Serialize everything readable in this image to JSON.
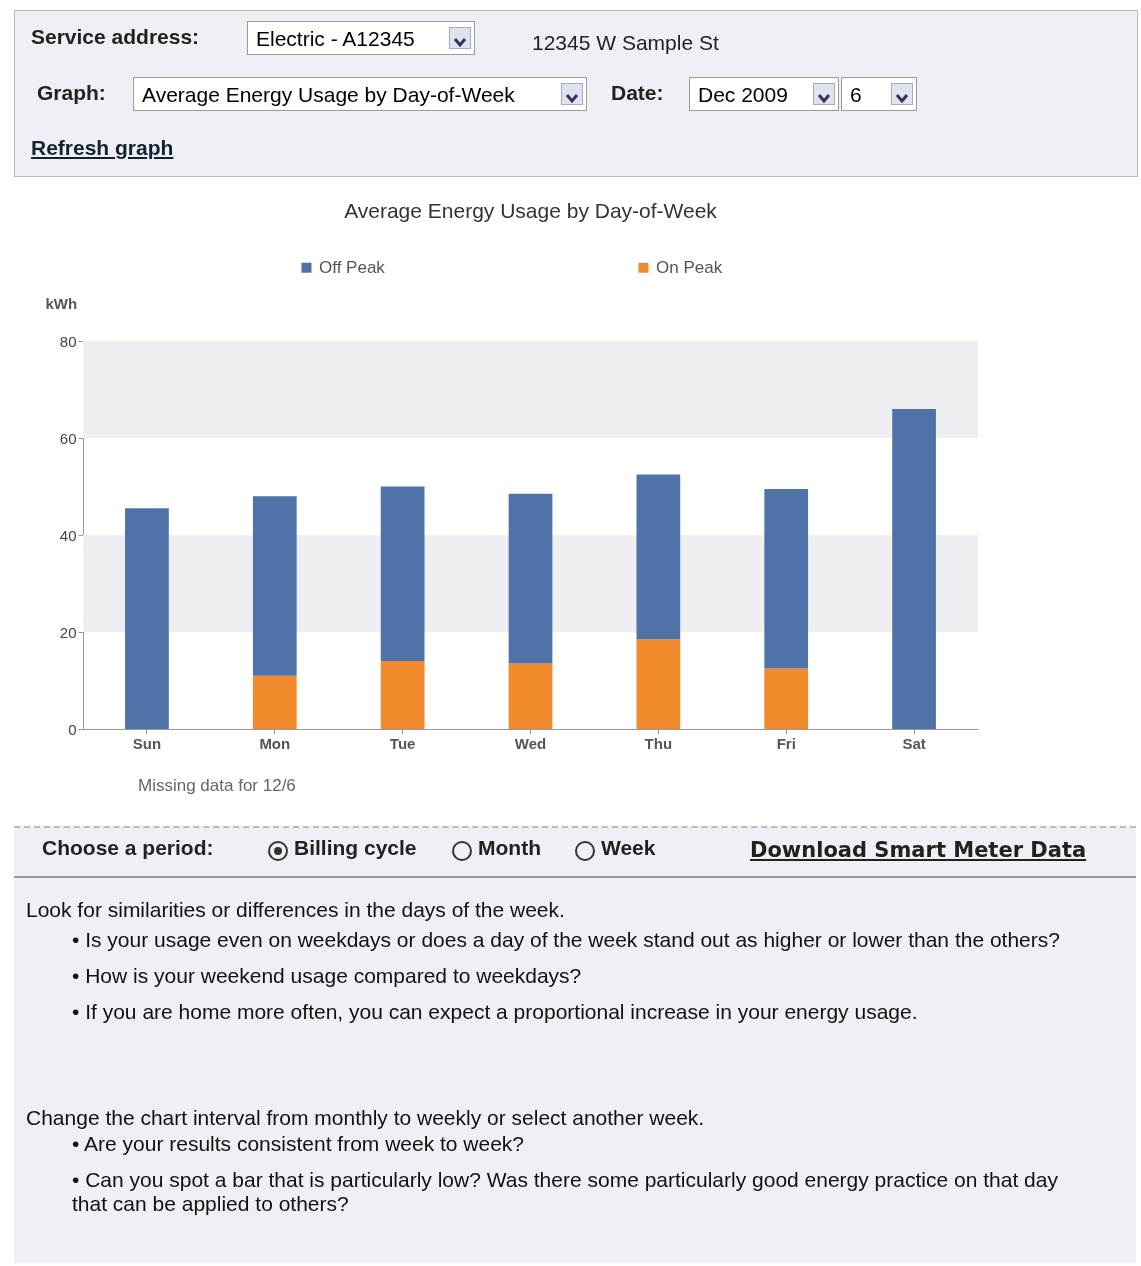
{
  "chart_data": {
    "type": "bar",
    "title": "Average Energy Usage by Day-of-Week",
    "ylabel": "kWh",
    "categories": [
      "Sun",
      "Mon",
      "Tue",
      "Wed",
      "Thu",
      "Fri",
      "Sat"
    ],
    "series": [
      {
        "name": "On Peak",
        "color": "#f08a2c",
        "values": [
          0,
          11,
          14,
          13.5,
          18.5,
          12.5,
          0
        ]
      },
      {
        "name": "Off Peak",
        "color": "#4f72a8",
        "values": [
          45.5,
          37,
          36,
          35,
          34,
          37,
          66
        ]
      }
    ],
    "stacked": true,
    "ylim": [
      0,
      80
    ],
    "yticks": [
      0,
      20,
      40,
      60,
      80
    ],
    "grid": false,
    "legend": "top",
    "bands": [
      {
        "axis": "y",
        "from": 20,
        "to": 40,
        "color": "#efeef3"
      },
      {
        "axis": "y",
        "from": 60,
        "to": 80,
        "color": "#efeef3"
      }
    ],
    "annotations": [
      "Service address:",
      "Electric - A12345",
      "12345 W Sample St",
      "Graph:",
      "Average Energy Usage by Day-of-Week",
      "Date:",
      "Dec 2009",
      "6",
      "Refresh graph",
      "Missing data for  12/6",
      "Choose a period:",
      "Billing cycle",
      "Month",
      "Week",
      "Download Smart Meter Data",
      "Look for similarities or differences in the days of the week.",
      "• Is your usage even on weekdays or does a day of the week stand out as higher or lower than the others?",
      "• How is your weekend usage compared to weekdays?",
      "• If you are home more often, you can expect a proportional increase in your energy usage.",
      "Change the chart interval from monthly to weekly or select another week.",
      "• Are your results consistent from week to week?",
      "• Can you spot a bar that is particularly low? Was there some particularly good energy practice on that day that can be applied to others?"
    ]
  }
}
